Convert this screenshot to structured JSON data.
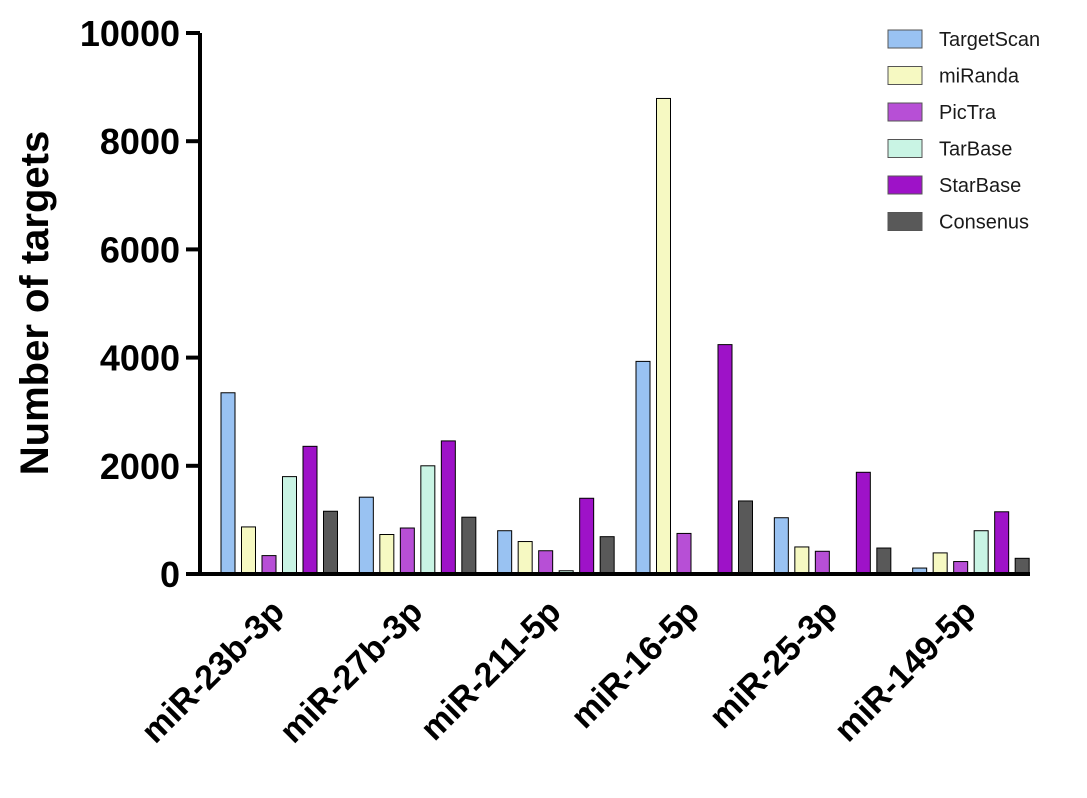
{
  "chart_data": {
    "type": "bar",
    "title": "",
    "xlabel": "",
    "ylabel": "Number of targets",
    "ylim": [
      0,
      10000
    ],
    "yticks": [
      0,
      2000,
      4000,
      6000,
      8000,
      10000
    ],
    "grid": false,
    "legend_position": "top-right",
    "categories": [
      "miR-23b-3p",
      "miR-27b-3p",
      "miR-211-5p",
      "miR-16-5p",
      "miR-25-3p",
      "miR-149-5p"
    ],
    "series": [
      {
        "name": "TargetScan",
        "color": "#99c2f2",
        "values": [
          3350,
          1420,
          800,
          3930,
          1040,
          110
        ]
      },
      {
        "name": "miRanda",
        "color": "#f6f9c2",
        "values": [
          870,
          730,
          600,
          8790,
          500,
          390
        ]
      },
      {
        "name": "PicTra",
        "color": "#b74fd6",
        "values": [
          340,
          850,
          430,
          750,
          420,
          230
        ]
      },
      {
        "name": "TarBase",
        "color": "#c9f4e4",
        "values": [
          1800,
          2000,
          60,
          0,
          0,
          800
        ]
      },
      {
        "name": "StarBase",
        "color": "#9e12c8",
        "values": [
          2360,
          2460,
          1400,
          4240,
          1880,
          1150
        ]
      },
      {
        "name": "Consenus",
        "color": "#595959",
        "values": [
          1160,
          1050,
          690,
          1350,
          480,
          290
        ]
      }
    ]
  }
}
